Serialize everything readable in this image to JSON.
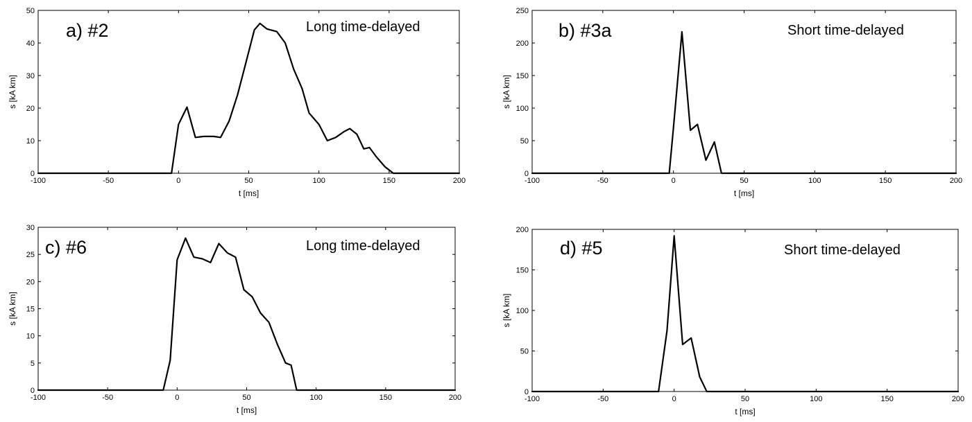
{
  "chart_data": [
    {
      "type": "line",
      "panel_label": "a) #2",
      "annotation": "Long time-delayed",
      "xlabel": "t  [ms]",
      "ylabel": "s [kA km]",
      "xlim": [
        -100,
        200
      ],
      "ylim": [
        0,
        50
      ],
      "xticks": [
        -100,
        -50,
        0,
        50,
        100,
        150,
        200
      ],
      "yticks": [
        0,
        10,
        20,
        30,
        40,
        50
      ],
      "grid": false,
      "series": [
        {
          "x": [
            -100,
            -5,
            0,
            6,
            12,
            18,
            25,
            30,
            36,
            42,
            48,
            54,
            58,
            63,
            70,
            76,
            82,
            88,
            93,
            100,
            106,
            112,
            118,
            122,
            127,
            132,
            136,
            141,
            147,
            153,
            200
          ],
          "y": [
            0,
            0,
            15,
            20.3,
            11,
            11.3,
            11.3,
            11,
            16,
            24,
            34,
            44,
            46,
            44.3,
            43.5,
            40,
            32,
            26,
            18.5,
            15,
            10,
            11,
            12.8,
            13.7,
            12,
            7.5,
            7.9,
            5,
            2,
            0,
            0
          ]
        }
      ],
      "color": "#000000"
    },
    {
      "type": "line",
      "panel_label": "b) #3a",
      "annotation": "Short time-delayed",
      "xlabel": "t  [ms]",
      "ylabel": "s [kA km]",
      "xlim": [
        -100,
        200
      ],
      "ylim": [
        0,
        250
      ],
      "xticks": [
        -100,
        -50,
        0,
        50,
        100,
        150,
        200
      ],
      "yticks": [
        0,
        50,
        100,
        150,
        200,
        250
      ],
      "grid": false,
      "series": [
        {
          "x": [
            -100,
            -3,
            0,
            6,
            12,
            17,
            23,
            29,
            34,
            200
          ],
          "y": [
            0,
            0,
            70,
            217,
            66,
            75,
            20,
            48,
            0,
            0
          ]
        }
      ],
      "color": "#000000"
    },
    {
      "type": "line",
      "panel_label": "c) #6",
      "annotation": "Long time-delayed",
      "xlabel": "t  [ms]",
      "ylabel": "s [kA km]",
      "xlim": [
        -100,
        200
      ],
      "ylim": [
        0,
        30
      ],
      "xticks": [
        -100,
        -50,
        0,
        50,
        100,
        150,
        200
      ],
      "yticks": [
        0,
        5,
        10,
        15,
        20,
        25,
        30
      ],
      "grid": false,
      "series": [
        {
          "x": [
            -100,
            -10,
            -5,
            0,
            6,
            12,
            18,
            24,
            30,
            36,
            42,
            48,
            54,
            60,
            66,
            72,
            78,
            82,
            86,
            200
          ],
          "y": [
            0,
            0,
            5.5,
            24,
            28,
            24.5,
            24.2,
            23.5,
            27,
            25.3,
            24.5,
            18.5,
            17.2,
            14.2,
            12.5,
            8.5,
            5,
            4.6,
            0,
            0
          ]
        }
      ],
      "color": "#000000"
    },
    {
      "type": "line",
      "panel_label": "d) #5",
      "annotation": "Short time-delayed",
      "xlabel": "t  [ms]",
      "ylabel": "s [kA km]",
      "xlim": [
        -100,
        200
      ],
      "ylim": [
        0,
        200
      ],
      "xticks": [
        -100,
        -50,
        0,
        50,
        100,
        150,
        200
      ],
      "yticks": [
        0,
        50,
        100,
        150,
        200
      ],
      "grid": false,
      "series": [
        {
          "x": [
            -100,
            -11,
            -5,
            0,
            6,
            12,
            18,
            23,
            200
          ],
          "y": [
            0,
            0,
            75,
            192,
            58,
            66,
            18,
            0,
            0
          ]
        }
      ],
      "color": "#000000"
    }
  ]
}
